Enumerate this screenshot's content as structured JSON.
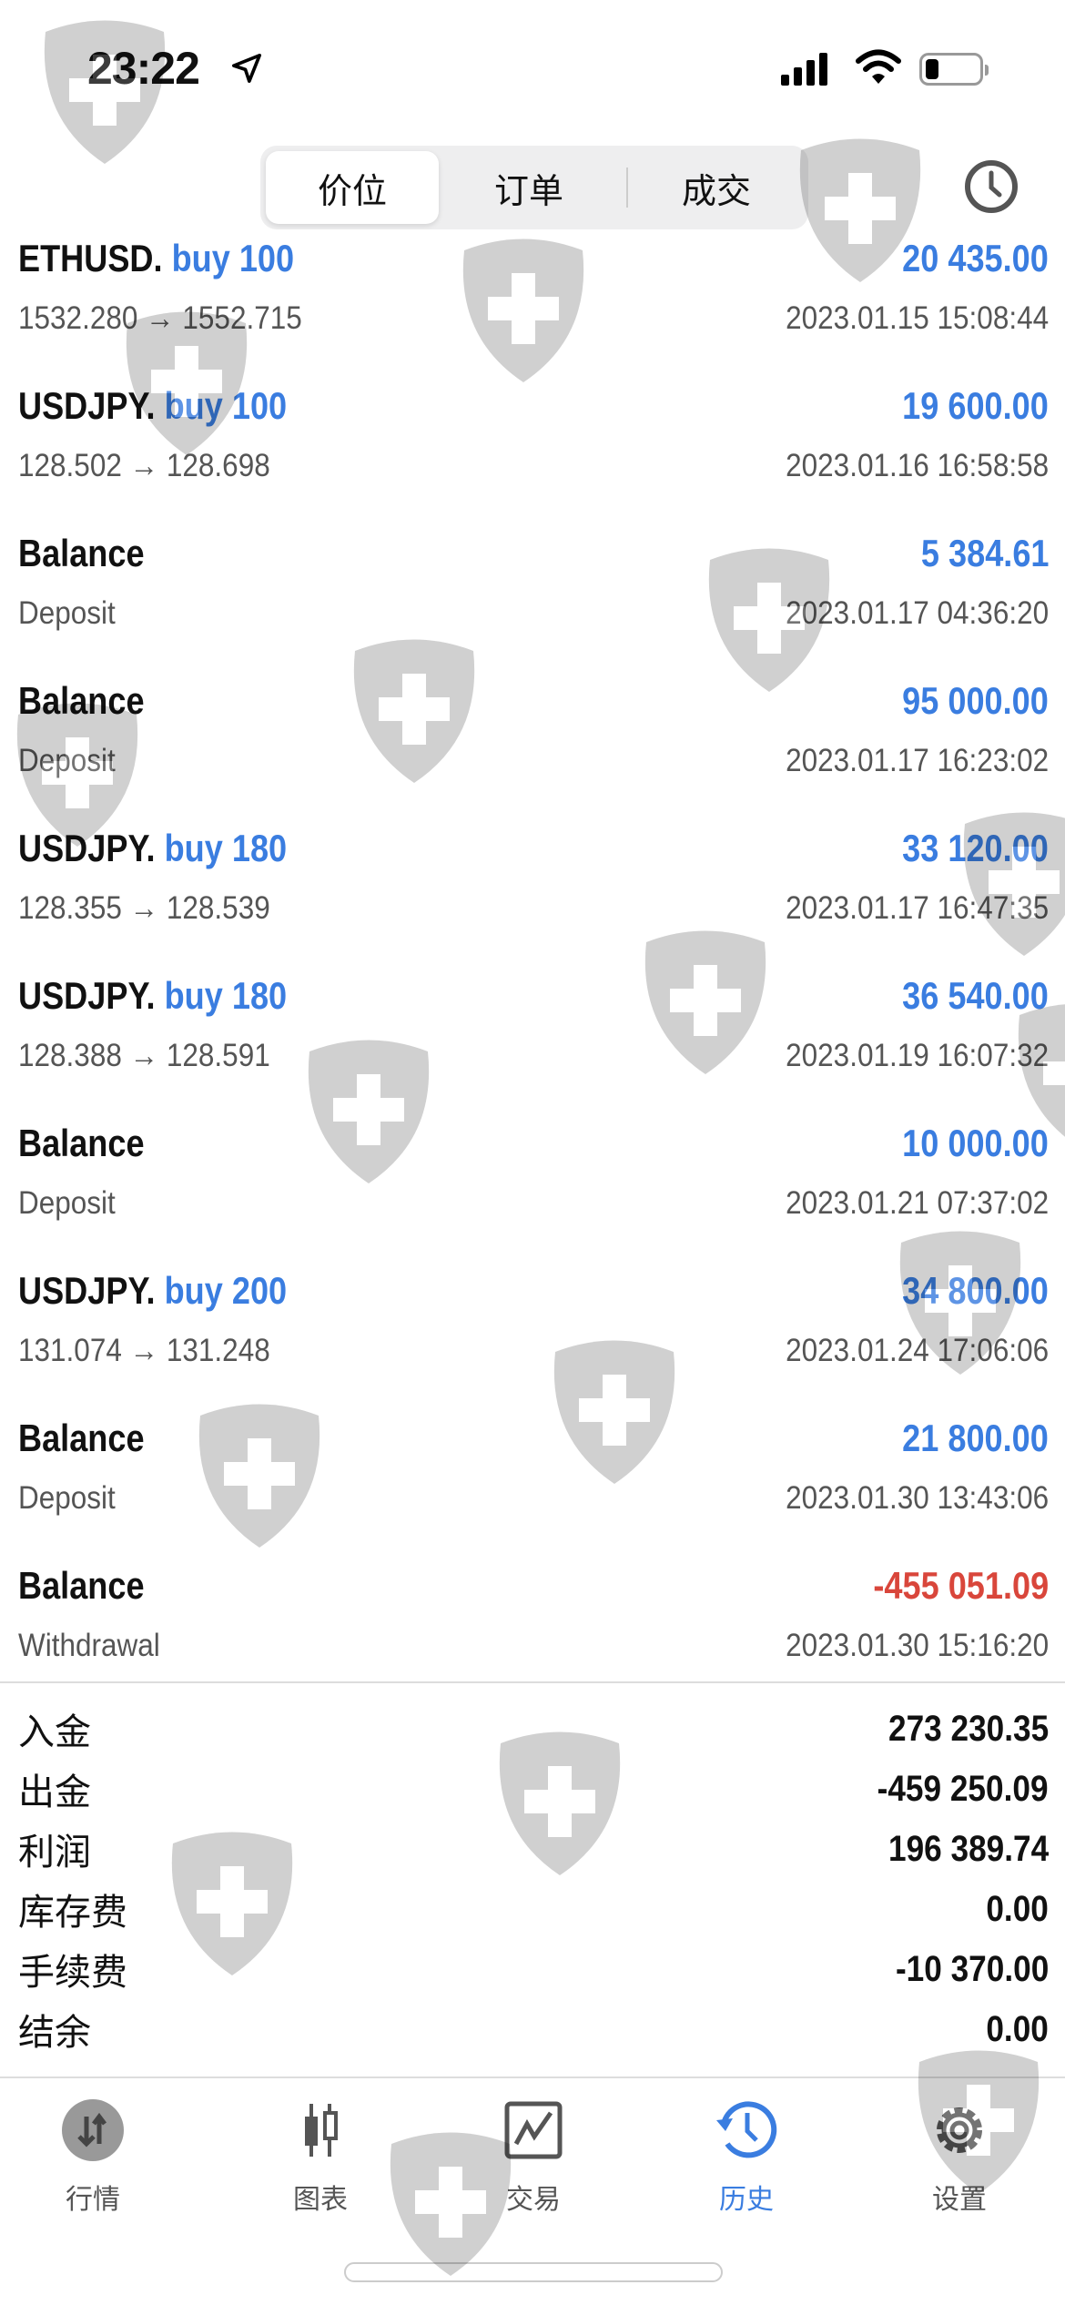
{
  "status_bar": {
    "time": "23:22"
  },
  "header": {
    "tabs": [
      {
        "label": "价位",
        "active": true
      },
      {
        "label": "订单",
        "active": false
      },
      {
        "label": "成交",
        "active": false
      }
    ],
    "history_icon": "clock-icon"
  },
  "deals": [
    {
      "symbol": "ETHUSD.",
      "side": "buy 100",
      "amount": "20 435.00",
      "detail": "1532.280 → 1552.715",
      "date": "2023.01.15 15:08:44"
    },
    {
      "symbol": "USDJPY.",
      "side": "buy 100",
      "amount": "19 600.00",
      "detail": "128.502 → 128.698",
      "date": "2023.01.16 16:58:58"
    },
    {
      "symbol": "Balance",
      "side": "",
      "amount": "5 384.61",
      "detail": "Deposit",
      "date": "2023.01.17 04:36:20"
    },
    {
      "symbol": "Balance",
      "side": "",
      "amount": "95 000.00",
      "detail": "Deposit",
      "date": "2023.01.17 16:23:02"
    },
    {
      "symbol": "USDJPY.",
      "side": "buy 180",
      "amount": "33 120.00",
      "detail": "128.355 → 128.539",
      "date": "2023.01.17 16:47:35"
    },
    {
      "symbol": "USDJPY.",
      "side": "buy 180",
      "amount": "36 540.00",
      "detail": "128.388 → 128.591",
      "date": "2023.01.19 16:07:32"
    },
    {
      "symbol": "Balance",
      "side": "",
      "amount": "10 000.00",
      "detail": "Deposit",
      "date": "2023.01.21 07:37:02"
    },
    {
      "symbol": "USDJPY.",
      "side": "buy 200",
      "amount": "34 800.00",
      "detail": "131.074 → 131.248",
      "date": "2023.01.24 17:06:06"
    },
    {
      "symbol": "Balance",
      "side": "",
      "amount": "21 800.00",
      "detail": "Deposit",
      "date": "2023.01.30 13:43:06"
    },
    {
      "symbol": "Balance",
      "side": "",
      "amount": "-455 051.09",
      "detail": "Withdrawal",
      "date": "2023.01.30 15:16:20",
      "negative": true
    }
  ],
  "summary": [
    {
      "label": "入金",
      "value": "273 230.35"
    },
    {
      "label": "出金",
      "value": "-459 250.09"
    },
    {
      "label": "利润",
      "value": "196 389.74"
    },
    {
      "label": "库存费",
      "value": "0.00"
    },
    {
      "label": "手续费",
      "value": "-10 370.00"
    },
    {
      "label": "结余",
      "value": "0.00"
    }
  ],
  "tabbar": [
    {
      "label": "行情",
      "icon": "quotes-icon"
    },
    {
      "label": "图表",
      "icon": "candlestick-icon"
    },
    {
      "label": "交易",
      "icon": "trade-chart-icon"
    },
    {
      "label": "历史",
      "icon": "history-icon",
      "active": true
    },
    {
      "label": "设置",
      "icon": "gear-icon"
    }
  ],
  "colors": {
    "accent": "#3a7de0",
    "negative": "#d9463b",
    "text": "#111111",
    "secondary": "#555555"
  }
}
